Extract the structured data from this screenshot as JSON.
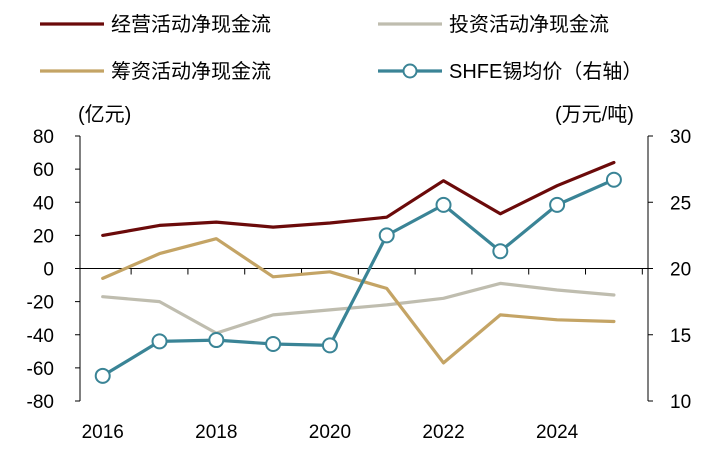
{
  "chart_data": {
    "type": "line",
    "x": [
      2016,
      2017,
      2018,
      2019,
      2020,
      2021,
      2022,
      2023,
      2024,
      2025
    ],
    "x_ticks": [
      "2016",
      "2018",
      "2020",
      "2022",
      "2024"
    ],
    "left_axis": {
      "unit": "(亿元)",
      "ylim": [
        -80,
        80
      ],
      "ticks": [
        "80",
        "60",
        "40",
        "20",
        "0",
        "-20",
        "-40",
        "-60",
        "-80"
      ]
    },
    "right_axis": {
      "unit": "(万元/吨)",
      "ylim": [
        10,
        30
      ],
      "ticks": [
        "30",
        "25",
        "20",
        "15",
        "10"
      ]
    },
    "series": [
      {
        "name": "经营活动净现金流",
        "axis": "left",
        "color": "#6b0a0a",
        "marker": false,
        "values": [
          20,
          26,
          28,
          25,
          27.5,
          31,
          53,
          33,
          50,
          64
        ]
      },
      {
        "name": "投资活动净现金流",
        "axis": "left",
        "color": "#bfbdaf",
        "marker": false,
        "values": [
          -17,
          -20,
          -39,
          -28,
          -25,
          -22,
          -18,
          -9,
          -13,
          -16
        ]
      },
      {
        "name": "筹资活动净现金流",
        "axis": "left",
        "color": "#c4a465",
        "marker": false,
        "values": [
          -6,
          9,
          18,
          -5,
          -2,
          -12,
          -57,
          -28,
          -31,
          -32
        ]
      },
      {
        "name": "SHFE锡均价（右轴）",
        "axis": "right",
        "color": "#3a8496",
        "marker": true,
        "values": [
          11.9,
          14.5,
          14.6,
          14.3,
          14.2,
          22.5,
          24.8,
          21.3,
          24.8,
          26.7
        ]
      }
    ]
  }
}
